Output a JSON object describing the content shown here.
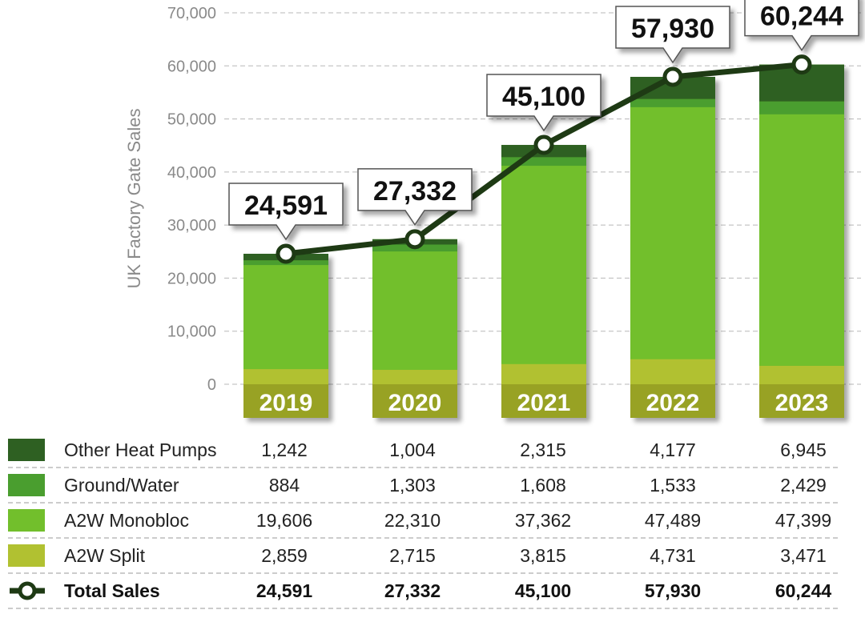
{
  "chart_data": {
    "type": "bar",
    "stacked": true,
    "title": "",
    "xlabel": "",
    "ylabel": "UK Factory Gate Sales",
    "ylim": [
      0,
      70000
    ],
    "yticks": [
      0,
      10000,
      20000,
      30000,
      40000,
      50000,
      60000,
      70000
    ],
    "ytick_labels": [
      "0",
      "10,000",
      "20,000",
      "30,000",
      "40,000",
      "50,000",
      "60,000",
      "70,000"
    ],
    "grid": true,
    "categories": [
      "2019",
      "2020",
      "2021",
      "2022",
      "2023"
    ],
    "series": [
      {
        "name": "A2W Split",
        "color": "#b1c131",
        "values": [
          2859,
          2715,
          3815,
          4731,
          3471
        ],
        "labels": [
          "2,859",
          "2,715",
          "3,815",
          "4,731",
          "3,471"
        ]
      },
      {
        "name": "A2W Monobloc",
        "color": "#72bf2c",
        "values": [
          19606,
          22310,
          37362,
          47489,
          47399
        ],
        "labels": [
          "19,606",
          "22,310",
          "37,362",
          "47,489",
          "47,399"
        ]
      },
      {
        "name": "Ground/Water",
        "color": "#4a9e2f",
        "values": [
          884,
          1303,
          1608,
          1533,
          2429
        ],
        "labels": [
          "884",
          "1,303",
          "1,608",
          "1,533",
          "2,429"
        ]
      },
      {
        "name": "Other Heat Pumps",
        "color": "#2e6022",
        "values": [
          1242,
          1004,
          2315,
          4177,
          6945
        ],
        "labels": [
          "1,242",
          "1,004",
          "2,315",
          "4,177",
          "6,945"
        ]
      }
    ],
    "total": {
      "name": "Total Sales",
      "type": "line",
      "color": "#1e3a14",
      "values": [
        24591,
        27332,
        45100,
        57930,
        60244
      ],
      "labels": [
        "24,591",
        "27,332",
        "45,100",
        "57,930",
        "60,244"
      ]
    },
    "table_order": [
      "Other Heat Pumps",
      "Ground/Water",
      "A2W Monobloc",
      "A2W Split"
    ],
    "year_band_color": "#98a224"
  }
}
